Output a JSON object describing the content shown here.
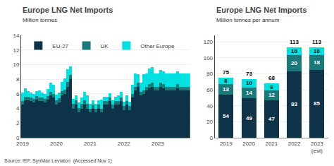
{
  "chart_data": [
    {
      "type": "bar",
      "stacked": true,
      "title": "Europe LNG Net Imports",
      "ylabel": "Million tonnes",
      "categories": [
        "2019",
        null,
        null,
        null,
        null,
        null,
        null,
        null,
        null,
        null,
        null,
        null,
        "2020",
        null,
        null,
        null,
        null,
        null,
        null,
        null,
        null,
        null,
        null,
        null,
        "2021",
        null,
        null,
        null,
        null,
        null,
        null,
        null,
        null,
        null,
        null,
        null,
        "2022",
        null,
        null,
        null,
        null,
        null,
        null,
        null,
        null,
        null,
        null,
        null,
        "2023",
        null,
        null,
        null,
        null,
        null,
        null,
        null,
        null,
        null,
        null,
        null
      ],
      "series": [
        {
          "name": "EU-27",
          "color": "#0d3349",
          "values": [
            4.5,
            5.1,
            5.1,
            5.0,
            4.8,
            5.2,
            5.0,
            5.0,
            4.8,
            5.2,
            5.8,
            5.5,
            4.5,
            4.8,
            5.8,
            6.0,
            7.0,
            8.0,
            4.0,
            4.5,
            3.5,
            4.0,
            4.5,
            4.0,
            3.5,
            4.0,
            3.5,
            4.0,
            3.5,
            4.5,
            4.5,
            5.0,
            4.0,
            4.5,
            4.5,
            5.0,
            3.8,
            4.5,
            3.8,
            5.5,
            6.5,
            7.0,
            5.8,
            6.0,
            6.5,
            6.8,
            7.0,
            6.5,
            6.5,
            7.0,
            6.8,
            6.5,
            6.5,
            6.5,
            6.5,
            6.8,
            6.5,
            6.5,
            6.5,
            6.5
          ]
        },
        {
          "name": "UK",
          "color": "#1a7a7a",
          "values": [
            0.5,
            0.5,
            0.5,
            0.5,
            0.5,
            0.5,
            0.5,
            0.5,
            0.5,
            0.5,
            0.5,
            0.5,
            0.6,
            0.6,
            0.6,
            0.6,
            0.6,
            0.6,
            0.6,
            0.6,
            0.6,
            0.6,
            0.6,
            0.6,
            0.5,
            0.5,
            0.5,
            0.5,
            0.5,
            0.5,
            0.5,
            0.5,
            0.5,
            0.5,
            0.5,
            0.5,
            0.5,
            0.5,
            0.5,
            0.5,
            0.5,
            0.5,
            0.5,
            0.5,
            0.5,
            0.5,
            0.5,
            0.5,
            0.5,
            0.5,
            0.5,
            0.5,
            0.5,
            0.5,
            0.5,
            0.5,
            0.5,
            0.5,
            0.5,
            0.5
          ]
        },
        {
          "name": "Other Europe",
          "color": "#00e0e0",
          "values": [
            1.2,
            1.2,
            0.8,
            0.7,
            0.7,
            0.7,
            1.0,
            0.7,
            0.7,
            1.0,
            1.2,
            1.2,
            0.8,
            0.8,
            1.2,
            1.5,
            1.8,
            1.2,
            0.7,
            0.7,
            0.7,
            0.9,
            1.2,
            1.2,
            0.6,
            0.6,
            0.6,
            0.6,
            1.2,
            0.6,
            0.6,
            0.6,
            0.6,
            0.6,
            0.8,
            0.8,
            0.6,
            0.8,
            0.6,
            1.2,
            1.8,
            1.2,
            1.2,
            2.2,
            1.8,
            2.2,
            2.2,
            1.8,
            1.8,
            1.8,
            1.8,
            1.8,
            1.8,
            1.8,
            1.8,
            1.8,
            1.8,
            1.8,
            1.8,
            1.8
          ]
        }
      ],
      "ylim": [
        0,
        14
      ],
      "yticks": [
        0,
        2,
        4,
        6,
        8,
        10,
        12,
        14
      ],
      "grid": true,
      "legend": "upper left",
      "annotations": [
        "Source: IEF, SynMax Leviaton  (Accessed Nov 1)"
      ]
    },
    {
      "type": "bar",
      "stacked": true,
      "title": "Europe LNG Net Imports",
      "ylabel": "Million tonnes per annum",
      "categories": [
        "2019",
        "2020",
        "2021",
        "2022",
        "2023\n(est)"
      ],
      "series": [
        {
          "name": "EU-27",
          "color": "#0d3349",
          "values": [
            54,
            49,
            47,
            83,
            85
          ]
        },
        {
          "name": "UK",
          "color": "#1a7a7a",
          "values": [
            13,
            14,
            12,
            20,
            18
          ]
        },
        {
          "name": "Other Europe",
          "color": "#00e0e0",
          "values": [
            8,
            10,
            9,
            10,
            10
          ]
        }
      ],
      "totals": [
        75,
        73,
        68,
        113,
        113
      ],
      "data_labels": true,
      "ylim": [
        0,
        128
      ],
      "yticks": [
        0,
        20,
        40,
        60,
        80,
        100,
        120
      ],
      "grid": true
    }
  ]
}
